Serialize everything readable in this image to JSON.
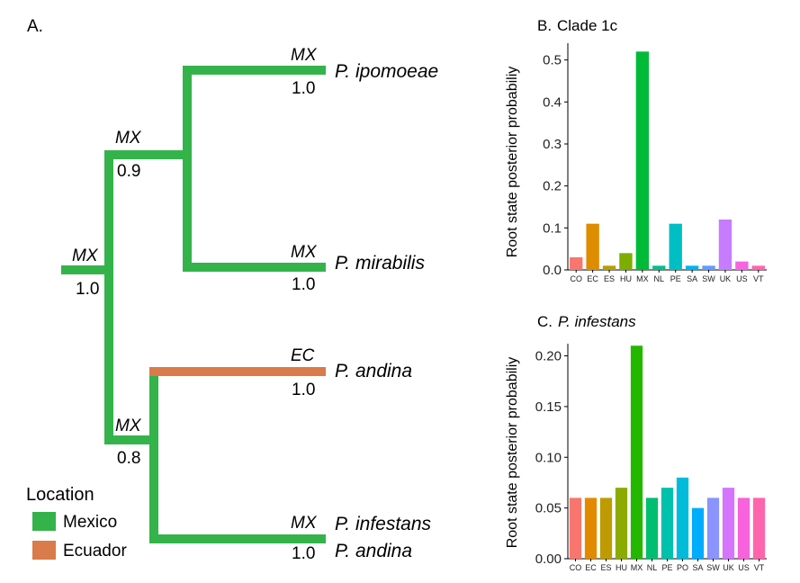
{
  "panel_a": {
    "label": "A.",
    "legend": {
      "title": "Location",
      "items": [
        {
          "label": "Mexico",
          "color": "#34b34a"
        },
        {
          "label": "Ecuador",
          "color": "#d97b4a"
        }
      ]
    },
    "nodes": [
      {
        "id": "root",
        "state": "MX",
        "prob": "1.0"
      },
      {
        "id": "upper",
        "state": "MX",
        "prob": "0.9"
      },
      {
        "id": "lower",
        "state": "MX",
        "prob": "0.8"
      }
    ],
    "tips": [
      {
        "id": "ipomoeae",
        "name": "P. ipomoeae",
        "state": "MX",
        "prob": "1.0",
        "color": "#34b34a"
      },
      {
        "id": "mirabilis",
        "name": "P. mirabilis",
        "state": "MX",
        "prob": "1.0",
        "color": "#34b34a"
      },
      {
        "id": "andina1",
        "name": "P. andina",
        "state": "EC",
        "prob": "1.0",
        "color": "#d97b4a"
      },
      {
        "id": "infestans",
        "name": "P. infestans",
        "state": "MX",
        "prob": "1.0",
        "color": "#34b34a",
        "extra_name": "P. andina"
      }
    ]
  },
  "chart_data": [
    {
      "type": "bar",
      "panel_label": "B.",
      "title": "Clade 1c",
      "title_italic": false,
      "xlabel": "",
      "ylabel": "Root state posterior probabiliy",
      "ylim": [
        0,
        0.54
      ],
      "yticks": [
        "0.0",
        "0.1",
        "0.2",
        "0.3",
        "0.4",
        "0.5"
      ],
      "ytick_values": [
        0,
        0.1,
        0.2,
        0.3,
        0.4,
        0.5
      ],
      "categories": [
        "CO",
        "EC",
        "ES",
        "HU",
        "MX",
        "NL",
        "PE",
        "SA",
        "SW",
        "UK",
        "US",
        "VT"
      ],
      "values": [
        0.03,
        0.11,
        0.01,
        0.04,
        0.52,
        0.01,
        0.11,
        0.01,
        0.01,
        0.12,
        0.02,
        0.01
      ],
      "colors": [
        "#F8766D",
        "#DE8C00",
        "#B79F00",
        "#7CAE00",
        "#00BA38",
        "#00C08B",
        "#00BFC4",
        "#00B4F0",
        "#619CFF",
        "#C77CFF",
        "#F564E3",
        "#FF64B0"
      ],
      "grid": false,
      "legend": "none"
    },
    {
      "type": "bar",
      "panel_label": "C.",
      "title": "P. infestans",
      "title_italic": true,
      "xlabel": "",
      "ylabel": "Root state posterior probabiliy",
      "ylim": [
        0,
        0.212
      ],
      "yticks": [
        "0.00",
        "0.05",
        "0.10",
        "0.15",
        "0.20"
      ],
      "ytick_values": [
        0,
        0.05,
        0.1,
        0.15,
        0.2
      ],
      "categories": [
        "CO",
        "EC",
        "ES",
        "HU",
        "MX",
        "NL",
        "PE",
        "PO",
        "SA",
        "SW",
        "UK",
        "US",
        "VT"
      ],
      "values": [
        0.06,
        0.06,
        0.06,
        0.07,
        0.21,
        0.06,
        0.07,
        0.08,
        0.05,
        0.06,
        0.07,
        0.06,
        0.06
      ],
      "colors": [
        "#F8766D",
        "#E18A00",
        "#BE9C00",
        "#8CAB00",
        "#24B700",
        "#00BE70",
        "#00C1AB",
        "#00BBDA",
        "#00ACFC",
        "#8B93FF",
        "#D575FE",
        "#F962DD",
        "#FF65AC"
      ],
      "grid": false,
      "legend": "none"
    }
  ]
}
